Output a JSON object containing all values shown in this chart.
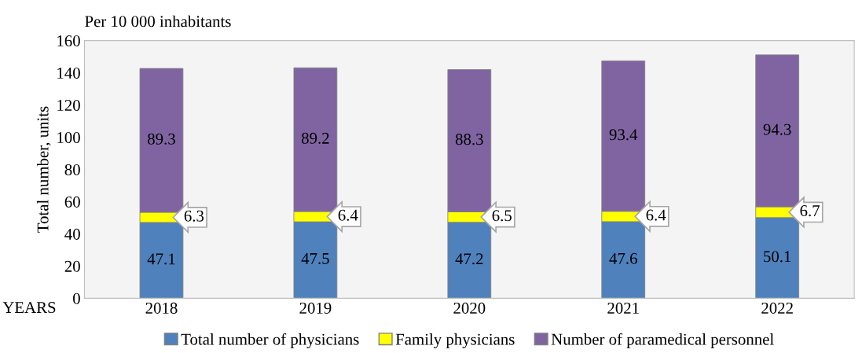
{
  "chart_data": {
    "type": "bar",
    "stacked": true,
    "subtitle": "Per 10 000 inhabitants",
    "ylabel": "Total number, units",
    "categories": [
      "2018",
      "2019",
      "2020",
      "2021",
      "2022"
    ],
    "series": [
      {
        "name": "Total number of physicians",
        "color": "#4f81bd",
        "values": [
          47.1,
          47.5,
          47.2,
          47.6,
          50.1
        ]
      },
      {
        "name": "Family physicians",
        "color": "#ffff00",
        "values": [
          6.3,
          6.4,
          6.5,
          6.4,
          6.7
        ]
      },
      {
        "name": "Number of paramedical personnel",
        "color": "#8064a2",
        "values": [
          89.3,
          89.2,
          88.3,
          93.4,
          94.3
        ]
      }
    ],
    "ylim": [
      0,
      160
    ],
    "yticks": [
      0,
      20,
      40,
      60,
      80,
      100,
      120,
      140,
      160
    ],
    "data_labels": true,
    "grid": false,
    "legend": "bottom",
    "annotations": [
      "YEARS"
    ]
  }
}
